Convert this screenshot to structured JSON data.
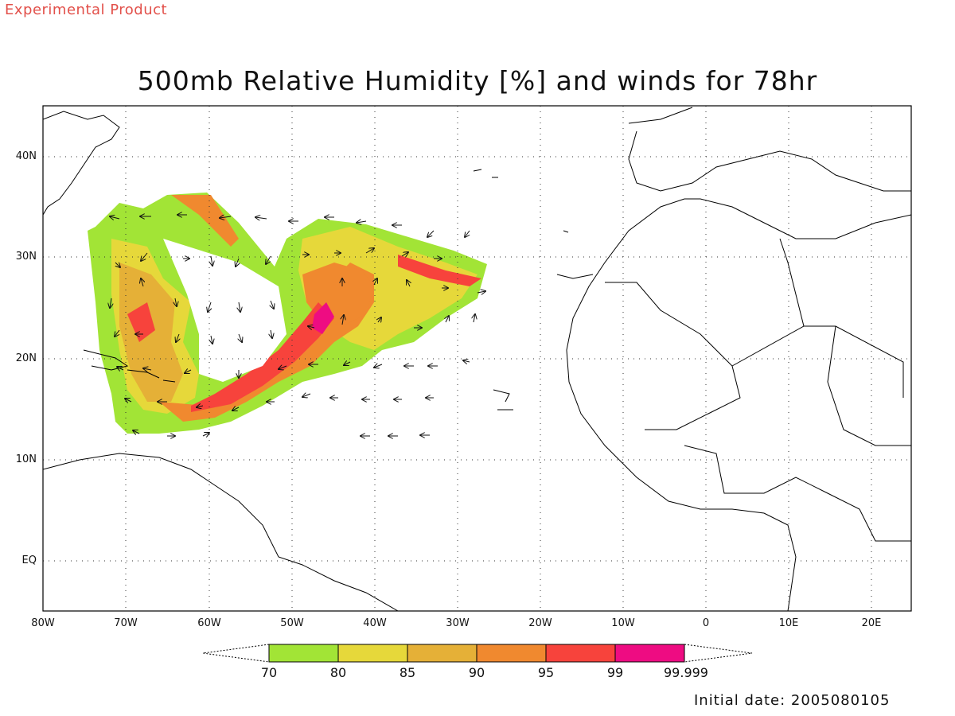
{
  "header": {
    "tag": "Experimental Product",
    "title": "500mb Relative Humidity [%] and winds for 78hr"
  },
  "axes": {
    "x_ticks": [
      "80W",
      "70W",
      "60W",
      "50W",
      "40W",
      "30W",
      "20W",
      "10W",
      "0",
      "10E",
      "20E"
    ],
    "y_ticks": [
      "40N",
      "30N",
      "20N",
      "10N",
      "EQ"
    ]
  },
  "colorbar": {
    "labels": [
      "70",
      "80",
      "85",
      "90",
      "95",
      "99",
      "99.999"
    ],
    "colors": [
      "#a2e436",
      "#e6d83a",
      "#e5b037",
      "#f0892f",
      "#f7433c",
      "#ee0c82"
    ]
  },
  "footer": {
    "initial_date": "Initial date: 2005080105"
  }
}
